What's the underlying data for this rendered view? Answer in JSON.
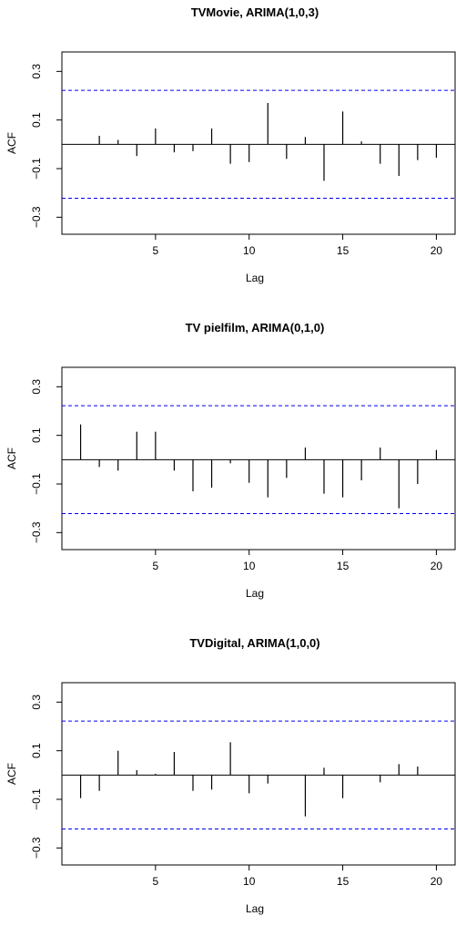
{
  "chart_data": [
    {
      "type": "bar",
      "title": "TVMovie, ARIMA(1,0,3)",
      "xlabel": "Lag",
      "ylabel": "ACF",
      "x": [
        1,
        2,
        3,
        4,
        5,
        6,
        7,
        8,
        9,
        10,
        11,
        12,
        13,
        14,
        15,
        16,
        17,
        18,
        19,
        20
      ],
      "values": [
        0.0,
        0.035,
        0.018,
        -0.048,
        0.065,
        -0.033,
        -0.028,
        0.065,
        -0.08,
        -0.073,
        0.17,
        -0.06,
        0.03,
        -0.15,
        0.135,
        0.012,
        -0.08,
        -0.13,
        -0.065,
        -0.055
      ],
      "ci": 0.222,
      "xlim": [
        0,
        21
      ],
      "ylim": [
        -0.37,
        0.38
      ],
      "xticks": [
        "5",
        "10",
        "15",
        "20"
      ],
      "yticks": [
        "-0.3",
        "-0.1",
        "0.1",
        "0.3"
      ]
    },
    {
      "type": "bar",
      "title": "TV pielfilm, ARIMA(0,1,0)",
      "xlabel": "Lag",
      "ylabel": "ACF",
      "x": [
        1,
        2,
        3,
        4,
        5,
        6,
        7,
        8,
        9,
        10,
        11,
        12,
        13,
        14,
        15,
        16,
        17,
        18,
        19,
        20
      ],
      "values": [
        0.145,
        -0.03,
        -0.045,
        0.115,
        0.115,
        -0.045,
        -0.13,
        -0.115,
        -0.015,
        -0.095,
        -0.155,
        -0.075,
        0.05,
        -0.14,
        -0.155,
        -0.085,
        0.05,
        -0.2,
        -0.1,
        0.04
      ],
      "ci": 0.222,
      "xlim": [
        0,
        21
      ],
      "ylim": [
        -0.37,
        0.38
      ],
      "xticks": [
        "5",
        "10",
        "15",
        "20"
      ],
      "yticks": [
        "-0.3",
        "-0.1",
        "0.1",
        "0.3"
      ]
    },
    {
      "type": "bar",
      "title": "TVDigital, ARIMA(1,0,0)",
      "xlabel": "Lag",
      "ylabel": "ACF",
      "x": [
        1,
        2,
        3,
        4,
        5,
        6,
        7,
        8,
        9,
        10,
        11,
        12,
        13,
        14,
        15,
        16,
        17,
        18,
        19,
        20
      ],
      "values": [
        -0.095,
        -0.065,
        0.1,
        0.02,
        0.005,
        0.095,
        -0.065,
        -0.06,
        0.135,
        -0.075,
        -0.035,
        0.0,
        -0.17,
        0.03,
        -0.095,
        0.0,
        -0.03,
        0.045,
        0.035,
        0.0
      ],
      "ci": 0.222,
      "xlim": [
        0,
        21
      ],
      "ylim": [
        -0.37,
        0.38
      ],
      "xticks": [
        "5",
        "10",
        "15",
        "20"
      ],
      "yticks": [
        "-0.3",
        "-0.1",
        "0.1",
        "0.3"
      ]
    }
  ]
}
